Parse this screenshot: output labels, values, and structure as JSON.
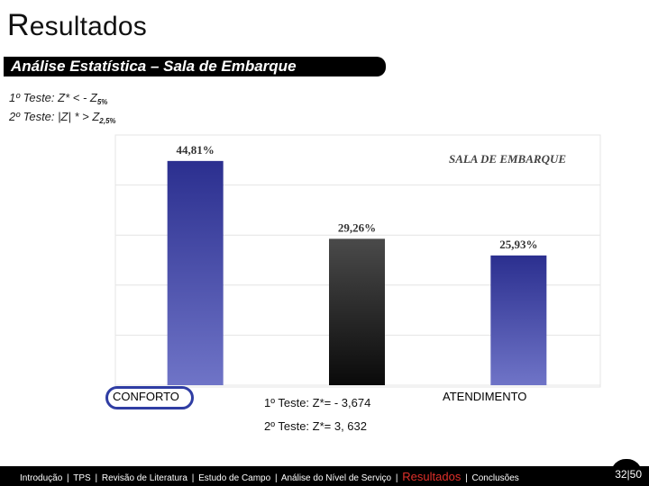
{
  "header": {
    "title_initial": "R",
    "title_rest": "esultados",
    "subtitle": "Análise Estatística – Sala de Embarque"
  },
  "tests": {
    "line1_text": "1º Teste: Z* < - Z",
    "line1_sub": "5%",
    "line2_text": "2º Teste: |Z| * > Z",
    "line2_sub": "2,5%"
  },
  "chart_data": {
    "type": "bar",
    "title": "SALA DE EMBARQUE",
    "categories": [
      "CONFORTO",
      "",
      "ATENDIMENTO"
    ],
    "values": [
      44.81,
      29.26,
      25.93
    ],
    "value_labels": [
      "44,81%",
      "29,26%",
      "25,93%"
    ],
    "colors": [
      "#3a3f9e",
      "#1e1e1e",
      "#3a3f9e"
    ],
    "grid": true,
    "ylim": [
      0,
      50
    ]
  },
  "stats": {
    "line1": "1º Teste: Z*= - 3,674",
    "line2": "2º Teste: Z*= 3, 632"
  },
  "footer": {
    "nav": [
      "Introdução",
      "TPS",
      "Revisão de Literatura",
      "Estudo de Campo",
      "Análise do Nível de Serviço",
      "Resultados",
      "Conclusões"
    ],
    "active_index": 5,
    "page": "32|50"
  },
  "colors": {
    "accent": "#e0302a",
    "bar_blue": "#3a3f9e",
    "bar_dark": "#1e1e1e"
  }
}
